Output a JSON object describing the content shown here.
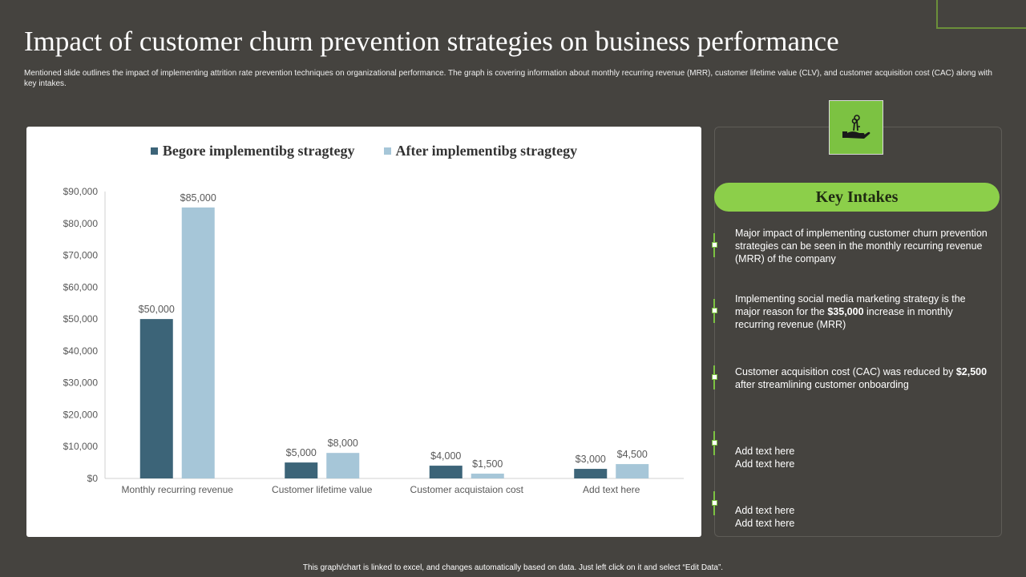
{
  "title": "Impact of customer churn prevention strategies on business performance",
  "subtitle": "Mentioned slide outlines the impact of implementing  attrition rate prevention techniques on organizational performance. The graph is covering information about monthly recurring revenue (MRR), customer lifetime value (CLV), and customer acquisition cost (CAC) along  with key intakes.",
  "colors": {
    "background": "#45433f",
    "before": "#3c6478",
    "after": "#a6c6d8",
    "accent": "#8ccf4a"
  },
  "icon": "hand-holding-keys-icon",
  "chart_data": {
    "type": "bar",
    "categories": [
      "Monthly recurring revenue",
      "Customer lifetime value",
      "Customer acquistaion cost",
      "Add text here"
    ],
    "series": [
      {
        "name": "Begore implementibg stragtegy",
        "values": [
          50000,
          5000,
          4000,
          3000
        ],
        "labels": [
          "$50,000",
          "$5,000",
          "$4,000",
          "$3,000"
        ]
      },
      {
        "name": "After implementibg stragtegy",
        "values": [
          85000,
          8000,
          1500,
          4500
        ],
        "labels": [
          "$85,000",
          "$8,000",
          "$1,500",
          "$4,500"
        ]
      }
    ],
    "ylim": [
      0,
      90000
    ],
    "yticks": [
      "$0",
      "$10,000",
      "$20,000",
      "$30,000",
      "$40,000",
      "$50,000",
      "$60,000",
      "$70,000",
      "$80,000",
      "$90,000"
    ],
    "legend": "top",
    "grid": false
  },
  "key_intakes": {
    "heading": "Key Intakes",
    "items": [
      {
        "pre": "Major impact of implementing customer churn prevention  strategies can be seen in the monthly recurring revenue  (MRR)  of the company",
        "bold": "",
        "post": ""
      },
      {
        "pre": "Implementing social media marketing strategy is the major reason for the ",
        "bold": "$35,000",
        "post": " increase in monthly recurring revenue  (MRR)"
      },
      {
        "pre": "Customer acquisition cost (CAC) was reduced by ",
        "bold": "$2,500",
        "post": " after streamlining customer onboarding"
      },
      {
        "pre": "Add text here\nAdd text here",
        "bold": "",
        "post": ""
      },
      {
        "pre": "Add text here\nAdd text here",
        "bold": "",
        "post": ""
      }
    ]
  },
  "footer": "This graph/chart is linked to excel, and changes automatically based on data. Just left click on it and select “Edit Data”."
}
